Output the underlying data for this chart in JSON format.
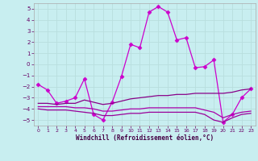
{
  "xlabel": "Windchill (Refroidissement éolien,°C)",
  "background_color": "#c8eef0",
  "grid_color": "#aadddd",
  "xlim": [
    -0.5,
    23.5
  ],
  "ylim": [
    -5.5,
    5.5
  ],
  "xticks": [
    0,
    1,
    2,
    3,
    4,
    5,
    6,
    7,
    8,
    9,
    10,
    11,
    12,
    13,
    14,
    15,
    16,
    17,
    18,
    19,
    20,
    21,
    22,
    23
  ],
  "yticks": [
    -5,
    -4,
    -3,
    -2,
    -1,
    0,
    1,
    2,
    3,
    4,
    5
  ],
  "series": [
    {
      "x": [
        0,
        1,
        2,
        3,
        4,
        5,
        6,
        7,
        8,
        9,
        10,
        11,
        12,
        13,
        14,
        15,
        16,
        17,
        18,
        19,
        20,
        21,
        22,
        23
      ],
      "y": [
        -1.8,
        -2.3,
        -3.5,
        -3.3,
        -3.0,
        -1.3,
        -4.5,
        -5.0,
        -3.4,
        -1.1,
        1.8,
        1.5,
        4.7,
        5.2,
        4.7,
        2.2,
        2.4,
        -0.3,
        -0.2,
        0.4,
        -5.2,
        -4.5,
        -3.0,
        -2.2
      ],
      "color": "#cc00cc",
      "linewidth": 0.9,
      "marker": "D",
      "markersize": 2.5
    },
    {
      "x": [
        0,
        1,
        2,
        3,
        4,
        5,
        6,
        7,
        8,
        9,
        10,
        11,
        12,
        13,
        14,
        15,
        16,
        17,
        18,
        19,
        20,
        21,
        22,
        23
      ],
      "y": [
        -3.5,
        -3.5,
        -3.6,
        -3.5,
        -3.5,
        -3.2,
        -3.4,
        -3.6,
        -3.5,
        -3.3,
        -3.1,
        -3.0,
        -2.9,
        -2.8,
        -2.8,
        -2.7,
        -2.7,
        -2.6,
        -2.6,
        -2.6,
        -2.6,
        -2.5,
        -2.3,
        -2.2
      ],
      "color": "#880088",
      "linewidth": 0.9,
      "marker": null,
      "markersize": 0
    },
    {
      "x": [
        0,
        1,
        2,
        3,
        4,
        5,
        6,
        7,
        8,
        9,
        10,
        11,
        12,
        13,
        14,
        15,
        16,
        17,
        18,
        19,
        20,
        21,
        22,
        23
      ],
      "y": [
        -3.8,
        -3.8,
        -3.8,
        -3.8,
        -3.9,
        -3.9,
        -4.0,
        -4.2,
        -4.2,
        -4.1,
        -4.0,
        -4.0,
        -3.9,
        -3.9,
        -3.9,
        -3.9,
        -3.9,
        -3.9,
        -4.1,
        -4.3,
        -4.8,
        -4.5,
        -4.3,
        -4.2
      ],
      "color": "#aa00aa",
      "linewidth": 0.9,
      "marker": null,
      "markersize": 0
    },
    {
      "x": [
        0,
        1,
        2,
        3,
        4,
        5,
        6,
        7,
        8,
        9,
        10,
        11,
        12,
        13,
        14,
        15,
        16,
        17,
        18,
        19,
        20,
        21,
        22,
        23
      ],
      "y": [
        -4.0,
        -4.1,
        -4.1,
        -4.1,
        -4.2,
        -4.3,
        -4.4,
        -4.6,
        -4.6,
        -4.5,
        -4.4,
        -4.4,
        -4.3,
        -4.3,
        -4.3,
        -4.3,
        -4.3,
        -4.3,
        -4.5,
        -5.0,
        -5.2,
        -4.8,
        -4.5,
        -4.4
      ],
      "color": "#990099",
      "linewidth": 0.9,
      "marker": null,
      "markersize": 0
    }
  ]
}
